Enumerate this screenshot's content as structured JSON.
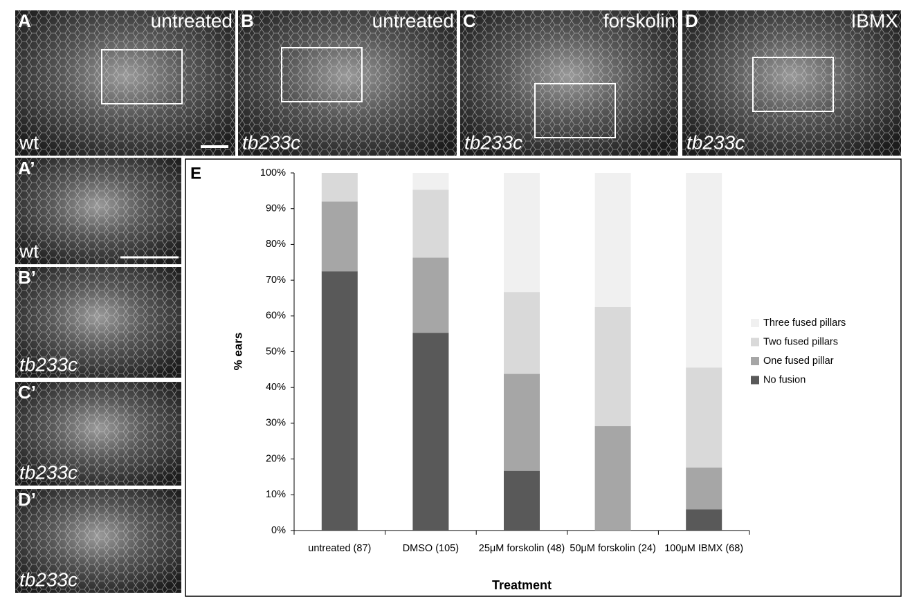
{
  "panels": [
    {
      "label": "A",
      "condition": "untreated",
      "genotype": "wt"
    },
    {
      "label": "B",
      "condition": "untreated",
      "genotype": "tb233c"
    },
    {
      "label": "C",
      "condition": "forskolin",
      "genotype": "tb233c"
    },
    {
      "label": "D",
      "condition": "IBMX",
      "genotype": "tb233c"
    }
  ],
  "detail_panels": [
    {
      "label": "A’",
      "genotype": "wt"
    },
    {
      "label": "B’",
      "genotype": "tb233c"
    },
    {
      "label": "C’",
      "genotype": "tb233c"
    },
    {
      "label": "D’",
      "genotype": "tb233c"
    }
  ],
  "chart_label": "E",
  "chart_data": {
    "type": "stacked_bar",
    "x_label": "Treatment",
    "y_label": "% ears",
    "categories": [
      "untreated (87)",
      "DMSO (105)",
      "25μM forskolin (48)",
      "50μM forskolin (24)",
      "100μM IBMX (68)"
    ],
    "series": [
      {
        "name": "No fusion",
        "color": "#595959",
        "values": [
          72.5,
          55.3,
          16.7,
          0,
          5.9
        ]
      },
      {
        "name": "One fused pillar",
        "color": "#a6a6a6",
        "values": [
          19.5,
          21,
          27.1,
          29.2,
          11.7
        ]
      },
      {
        "name": "Two fused pillars",
        "color": "#d9d9d9",
        "values": [
          8,
          19,
          22.9,
          33.3,
          28
        ]
      },
      {
        "name": "Three fused pillars",
        "color": "#f0f0f0",
        "values": [
          0,
          4.7,
          33.3,
          37.5,
          54.4
        ]
      }
    ],
    "ylim": [
      0,
      100
    ],
    "yticks": [
      {
        "value": 0,
        "label": "0%"
      },
      {
        "value": 10,
        "label": "10%"
      },
      {
        "value": 20,
        "label": "20%"
      },
      {
        "value": 30,
        "label": "30%"
      },
      {
        "value": 40,
        "label": "40%"
      },
      {
        "value": 50,
        "label": "50%"
      },
      {
        "value": 60,
        "label": "60%"
      },
      {
        "value": 70,
        "label": "70%"
      },
      {
        "value": 80,
        "label": "80%"
      },
      {
        "value": 90,
        "label": "90%"
      },
      {
        "value": 100,
        "label": "100%"
      }
    ],
    "legend": "right"
  }
}
